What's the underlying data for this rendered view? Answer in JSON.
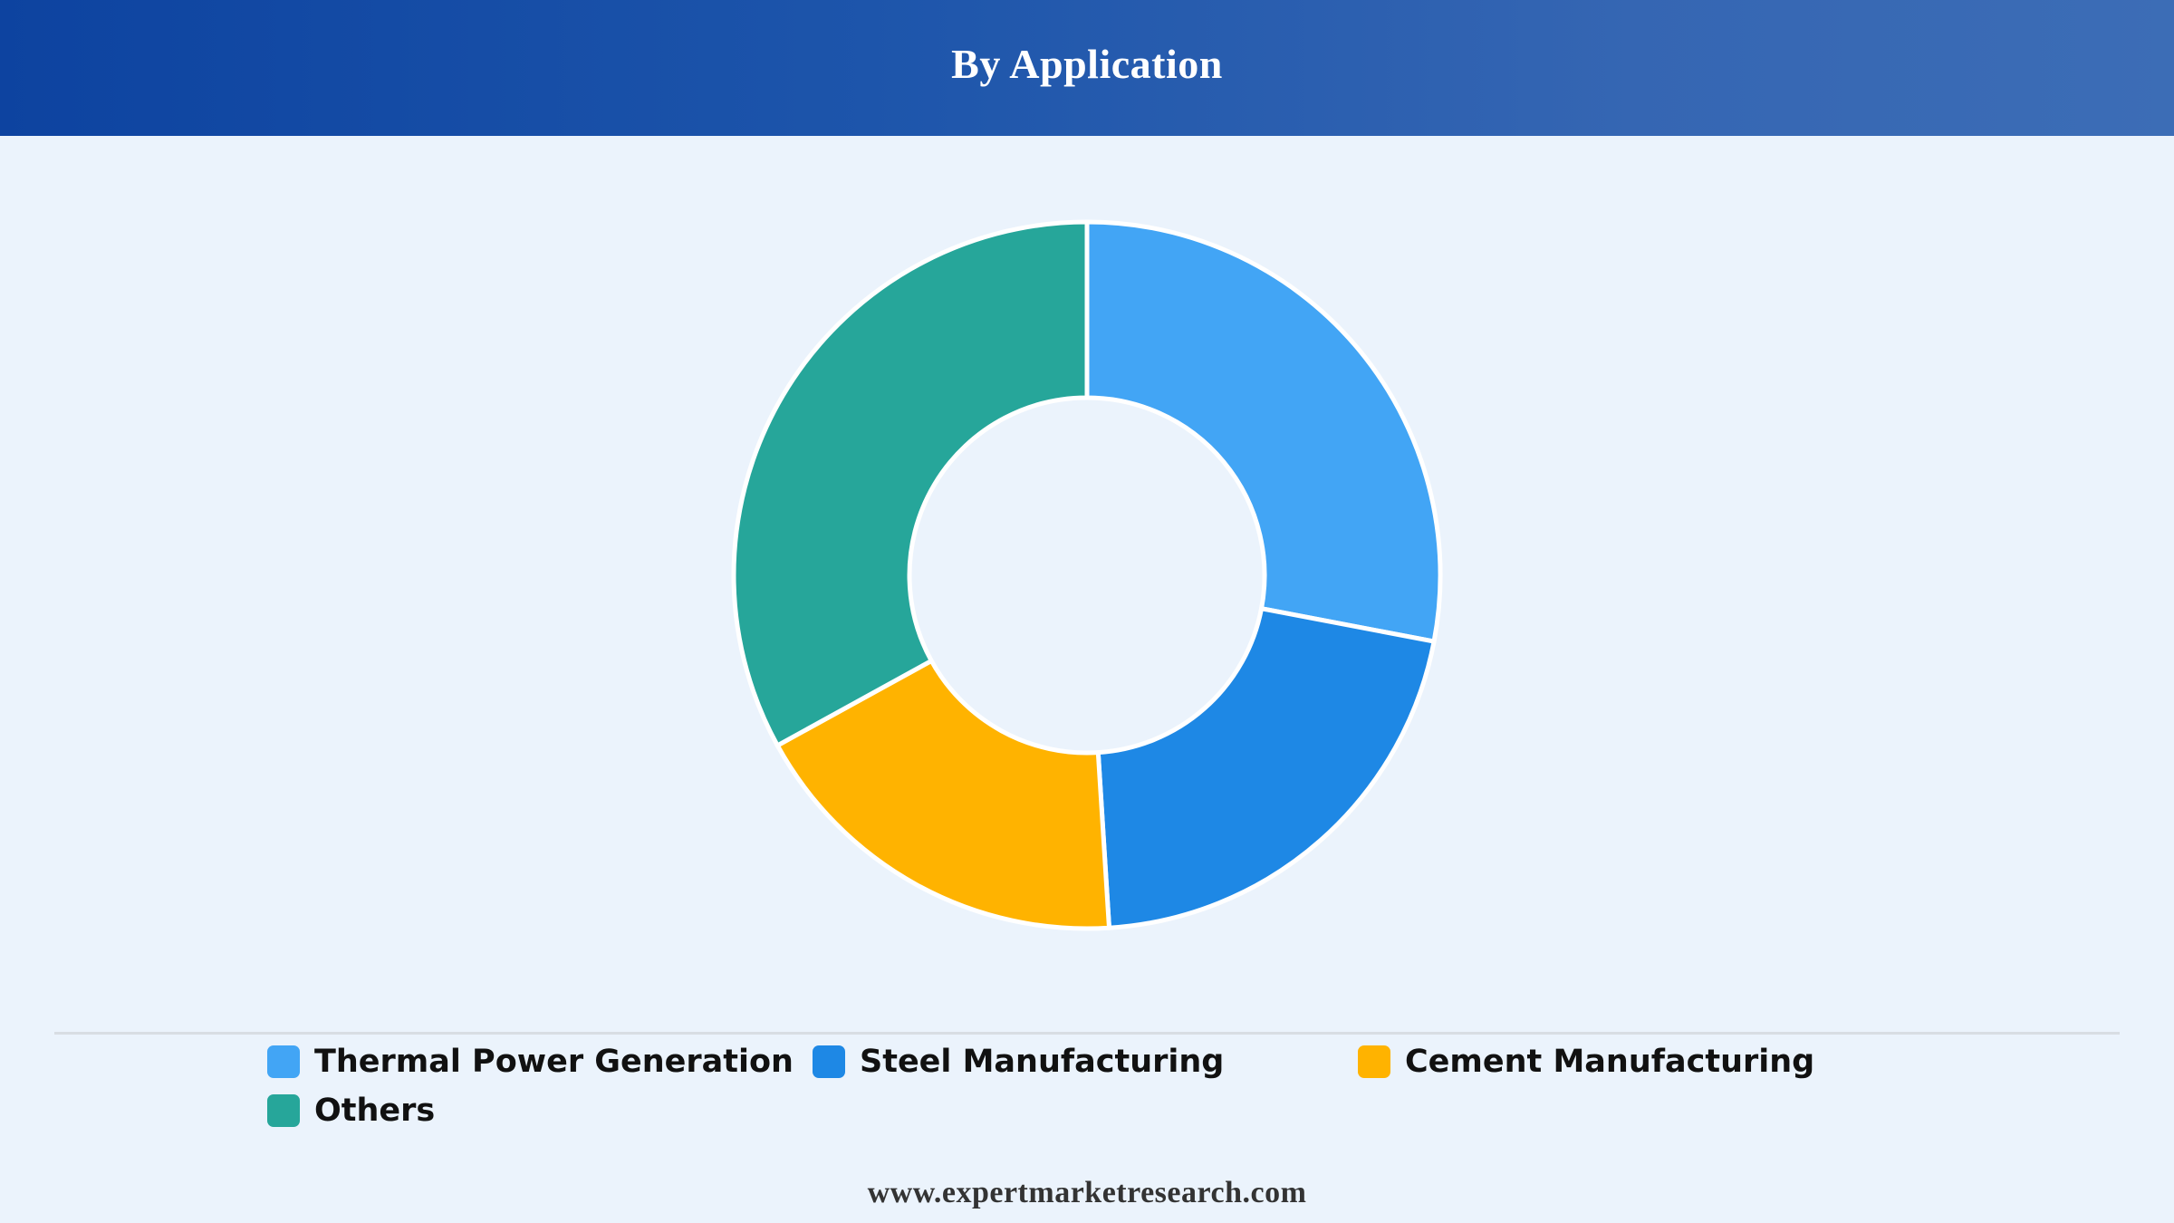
{
  "header": {
    "title": "By Application"
  },
  "chart_data": {
    "type": "pie",
    "title": "By Application",
    "donut": true,
    "categories": [
      "Thermal Power Generation",
      "Steel Manufacturing",
      "Cement Manufacturing",
      "Others"
    ],
    "values": [
      28,
      21,
      18,
      33
    ],
    "unit": "%",
    "colors": [
      "#42a5f5",
      "#1e88e5",
      "#ffb300",
      "#26a69a"
    ],
    "legend_position": "bottom"
  },
  "legend": {
    "items": [
      {
        "label": "Thermal Power Generation",
        "color": "#42a5f5"
      },
      {
        "label": "Steel Manufacturing",
        "color": "#1e88e5"
      },
      {
        "label": "Cement Manufacturing",
        "color": "#ffb300"
      },
      {
        "label": "Others",
        "color": "#26a69a"
      }
    ]
  },
  "footer": {
    "source": "www.expertmarketresearch.com"
  }
}
